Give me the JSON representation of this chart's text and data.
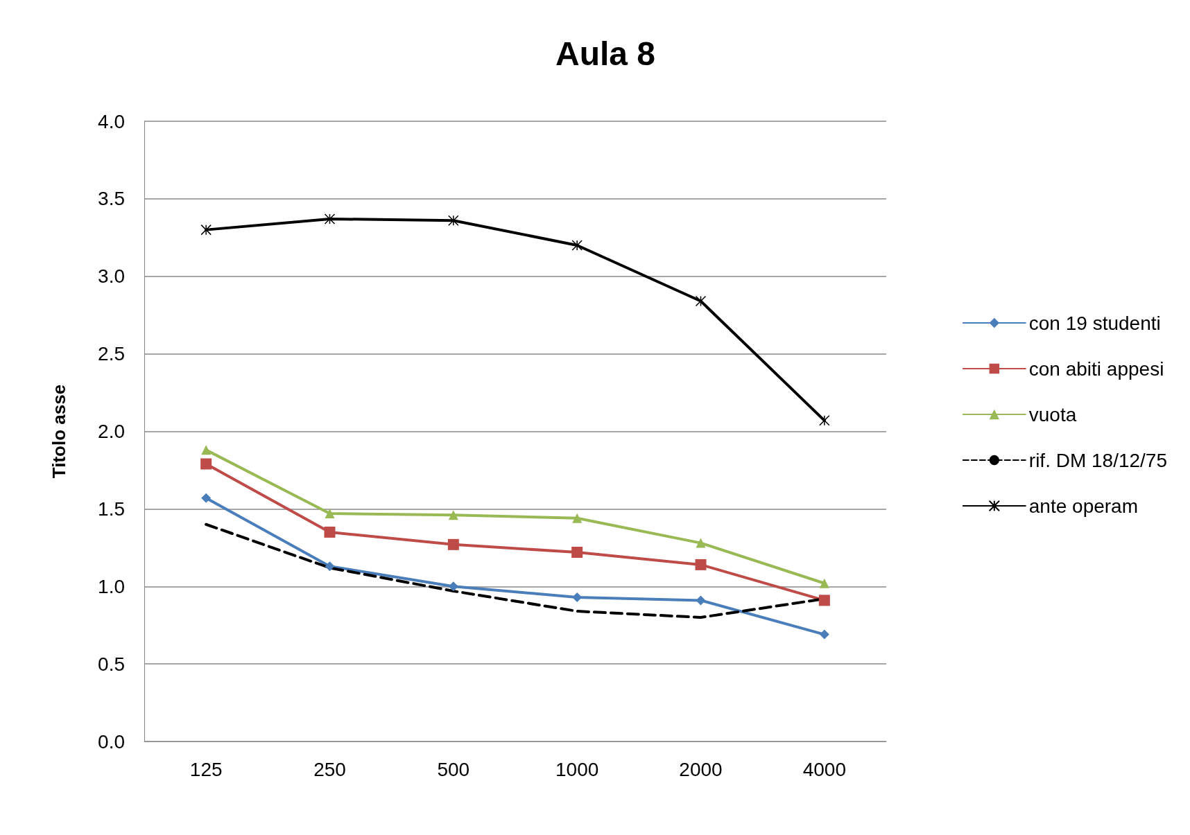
{
  "chart_data": {
    "type": "line",
    "title": "Aula 8",
    "ylabel": "Titolo asse",
    "categories": [
      "125",
      "250",
      "500",
      "1000",
      "2000",
      "4000"
    ],
    "series": [
      {
        "name": "con 19 studenti",
        "color": "#4a7ebb",
        "marker": "diamond",
        "line_style": "solid",
        "values": [
          1.57,
          1.13,
          1.0,
          0.93,
          0.91,
          0.69
        ]
      },
      {
        "name": "con abiti appesi",
        "color": "#be4b48",
        "marker": "square",
        "line_style": "solid",
        "values": [
          1.79,
          1.35,
          1.27,
          1.22,
          1.14,
          0.91
        ]
      },
      {
        "name": "vuota",
        "color": "#98b954",
        "marker": "triangle",
        "line_style": "solid",
        "values": [
          1.88,
          1.47,
          1.46,
          1.44,
          1.28,
          1.02
        ]
      },
      {
        "name": "rif. DM 18/12/75",
        "color": "#000000",
        "marker": "none",
        "line_style": "dashed",
        "values": [
          1.4,
          1.12,
          0.97,
          0.84,
          0.8,
          0.92
        ]
      },
      {
        "name": "ante operam",
        "color": "#000000",
        "marker": "cross",
        "line_style": "solid",
        "values": [
          3.3,
          3.37,
          3.36,
          3.2,
          2.84,
          2.07
        ]
      }
    ],
    "ylim": [
      0,
      4
    ],
    "yticks": [
      {
        "value": 0,
        "label": "0.0"
      },
      {
        "value": 0.5,
        "label": "0.5"
      },
      {
        "value": 1,
        "label": "1.0"
      },
      {
        "value": 1.5,
        "label": "1.5"
      },
      {
        "value": 2,
        "label": "2.0"
      },
      {
        "value": 2.5,
        "label": "2.5"
      },
      {
        "value": 3,
        "label": "3.0"
      },
      {
        "value": 3.5,
        "label": "3.5"
      },
      {
        "value": 4,
        "label": "4.0"
      }
    ],
    "grid": "y",
    "legend": "right"
  }
}
